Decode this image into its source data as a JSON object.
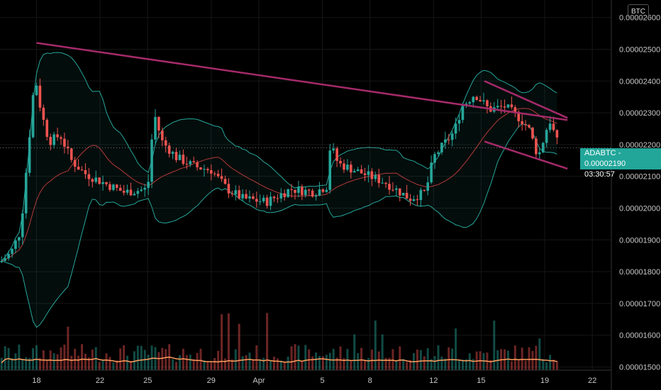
{
  "currency": "BTC",
  "price_tag": {
    "symbol": "ADABTC",
    "price": "0.00002190",
    "countdown": "03:30:57"
  },
  "colors": {
    "up": "#26a69a",
    "down": "#ef5350",
    "trendline": "#a52a6a",
    "volume_ma": "#ff9e5e",
    "band": "#26a69a",
    "basis": "#b33a3a"
  },
  "chart_data": {
    "type": "candlestick",
    "symbol": "ADABTC",
    "y_axis": {
      "ticks": [
        "0.00002600",
        "0.00002500",
        "0.00002400",
        "0.00002300",
        "0.00002200",
        "0.00002100",
        "0.00002000",
        "0.00001900",
        "0.00001800",
        "0.00001700",
        "0.00001600",
        "0.00001500"
      ],
      "range": [
        1.49e-05,
        2.655e-05
      ]
    },
    "x_axis": {
      "ticks": [
        "18",
        "22",
        "25",
        "29",
        "Apr",
        "5",
        "8",
        "12",
        "15",
        "19",
        "22"
      ],
      "tick_days": [
        0,
        4,
        7,
        11,
        14,
        18,
        21,
        25,
        28,
        32,
        35
      ],
      "range_days": [
        -2.3,
        36.2
      ]
    },
    "trendlines": [
      {
        "from": {
          "day": 0.0,
          "price": 2.52e-05
        },
        "to": {
          "day": 32.9,
          "price": 2.295e-05
        }
      },
      {
        "from": {
          "day": 28.2,
          "price": 2.4e-05
        },
        "to": {
          "day": 32.9,
          "price": 2.295e-05
        }
      },
      {
        "from": {
          "day": 28.2,
          "price": 2.21e-05
        },
        "to": {
          "day": 32.9,
          "price": 2.135e-05
        }
      }
    ],
    "current_price": 2.19e-05
  }
}
